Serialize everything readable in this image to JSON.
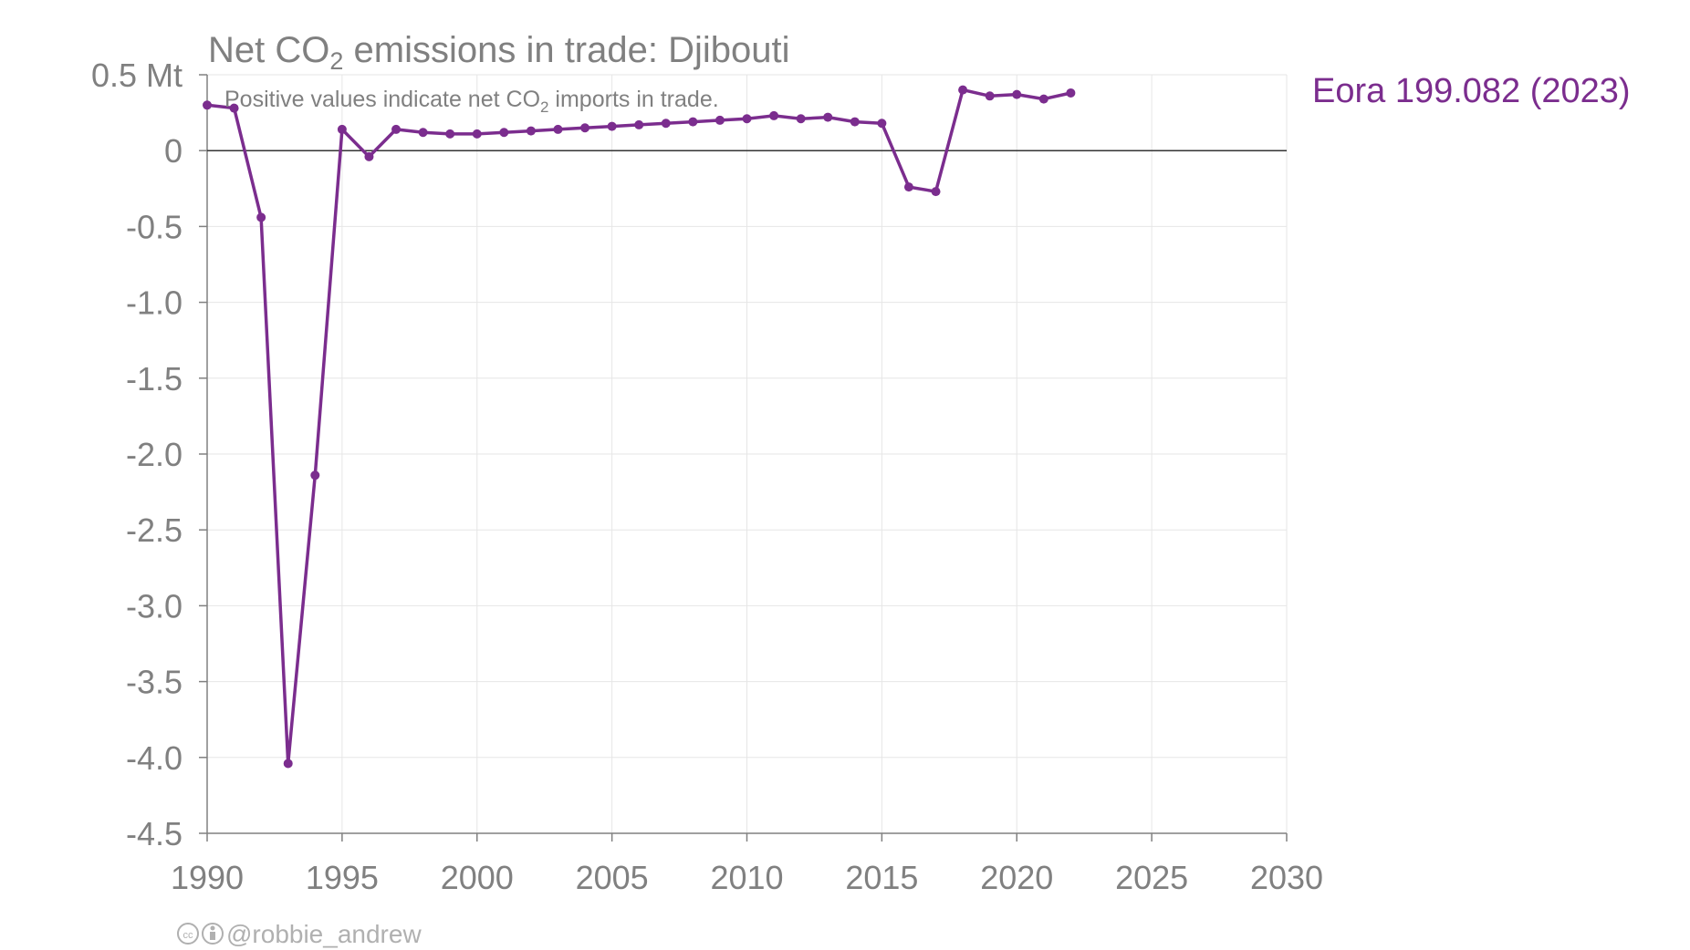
{
  "chart_data": {
    "type": "line",
    "title_pre": "Net CO",
    "title_sub": "2",
    "title_post": " emissions in trade: Djibouti",
    "subtitle_pre": "Positive values indicate net CO",
    "subtitle_sub": "2",
    "subtitle_post": " imports in trade.",
    "y_unit": "Mt",
    "xlim": [
      1990,
      2030
    ],
    "ylim": [
      -4.5,
      0.5
    ],
    "x_ticks": [
      1990,
      1995,
      2000,
      2005,
      2010,
      2015,
      2020,
      2025,
      2030
    ],
    "y_ticks": [
      {
        "value": 0.5,
        "label": "0.5 Mt"
      },
      {
        "value": 0,
        "label": "0"
      },
      {
        "value": -0.5,
        "label": "-0.5"
      },
      {
        "value": -1.0,
        "label": "-1.0"
      },
      {
        "value": -1.5,
        "label": "-1.5"
      },
      {
        "value": -2.0,
        "label": "-2.0"
      },
      {
        "value": -2.5,
        "label": "-2.5"
      },
      {
        "value": -3.0,
        "label": "-3.0"
      },
      {
        "value": -3.5,
        "label": "-3.5"
      },
      {
        "value": -4.0,
        "label": "-4.0"
      },
      {
        "value": -4.5,
        "label": "-4.5"
      }
    ],
    "grid": true,
    "series": [
      {
        "name": "Eora 199.082 (2023)",
        "color": "#7b2d8e",
        "x": [
          1990,
          1991,
          1992,
          1993,
          1994,
          1995,
          1996,
          1997,
          1998,
          1999,
          2000,
          2001,
          2002,
          2003,
          2004,
          2005,
          2006,
          2007,
          2008,
          2009,
          2010,
          2011,
          2012,
          2013,
          2014,
          2015,
          2016,
          2017,
          2018,
          2019,
          2020,
          2021,
          2022
        ],
        "values": [
          0.3,
          0.28,
          -0.44,
          -4.04,
          -2.14,
          0.14,
          -0.04,
          0.14,
          0.12,
          0.11,
          0.11,
          0.12,
          0.13,
          0.14,
          0.15,
          0.16,
          0.17,
          0.18,
          0.19,
          0.2,
          0.21,
          0.23,
          0.21,
          0.22,
          0.19,
          0.18,
          -0.24,
          -0.27,
          0.4,
          0.36,
          0.37,
          0.34,
          0.38
        ]
      }
    ]
  },
  "credit": {
    "handle": "@robbie_andrew",
    "license_icons": [
      "cc-icon",
      "by-icon"
    ]
  }
}
